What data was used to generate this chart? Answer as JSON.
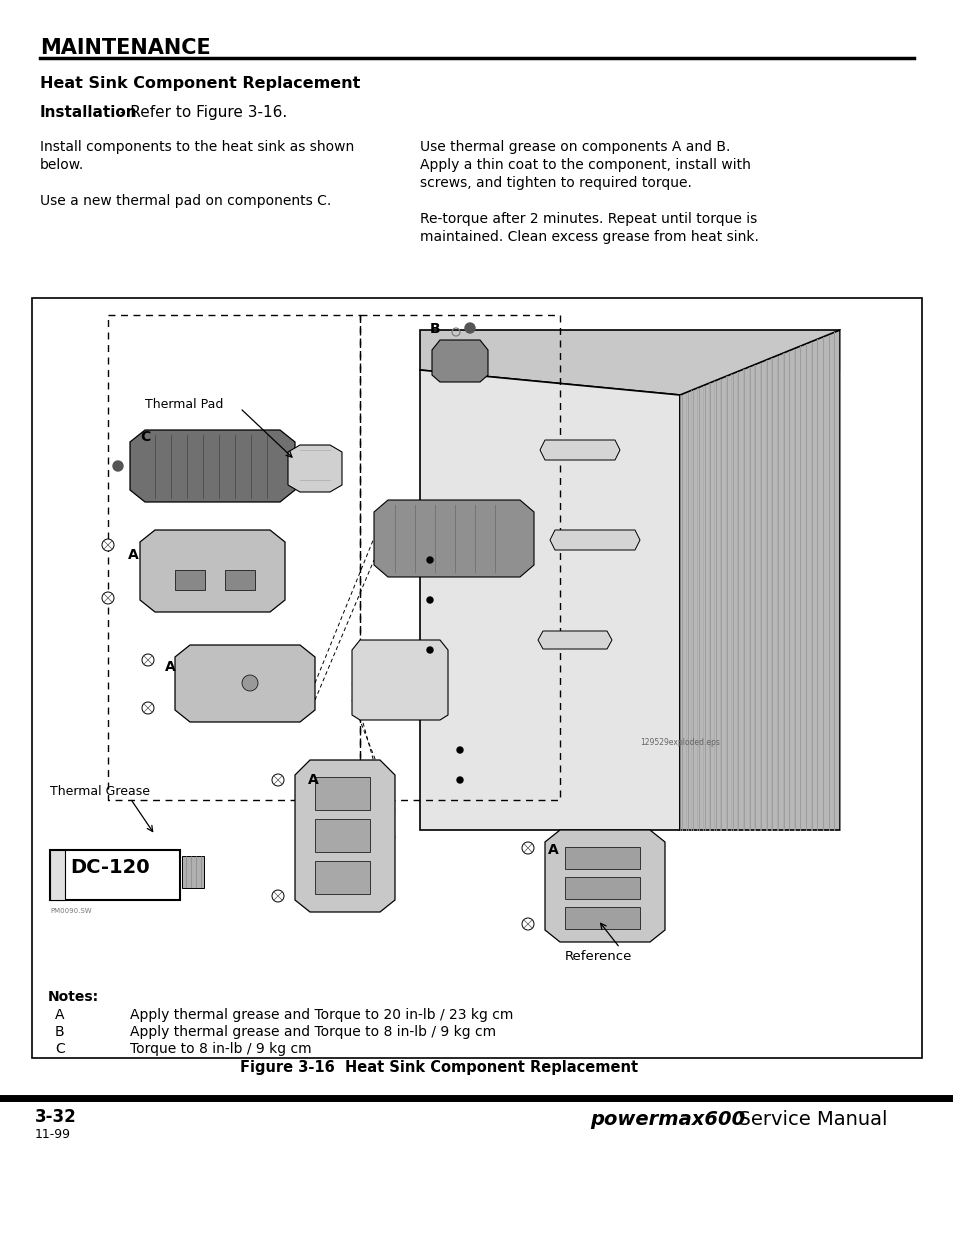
{
  "title": "MAINTENANCE",
  "subtitle": "Heat Sink Component Replacement",
  "install_bold": "Installation",
  "install_rest": " - Refer to Figure 3-16.",
  "left_col_lines": [
    "Install components to the heat sink as shown",
    "below.",
    "",
    "Use a new thermal pad on components C."
  ],
  "right_col_lines": [
    "Use thermal grease on components A and B.",
    "Apply a thin coat to the component, install with",
    "screws, and tighten to required torque.",
    "",
    "Re-torque after 2 minutes. Repeat until torque is",
    "maintained. Clean excess grease from heat sink."
  ],
  "figure_caption": "Figure 3-16  Heat Sink Component Replacement",
  "notes_header": "Notes:",
  "notes": [
    [
      "A",
      "Apply thermal grease and Torque to 20 in-lb / 23 kg cm"
    ],
    [
      "B",
      "Apply thermal grease and Torque to 8 in-lb / 9 kg cm"
    ],
    [
      "C",
      "Torque to 8 in-lb / 9 kg cm"
    ]
  ],
  "page_num": "3-32",
  "brand_italic": "powermax600",
  "brand_rest": "  Service Manual",
  "date": "11-99",
  "bg_color": "#ffffff",
  "text_color": "#000000"
}
